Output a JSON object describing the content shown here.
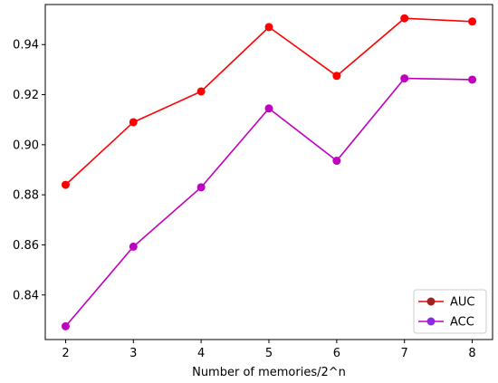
{
  "chart_data": {
    "type": "line",
    "xlabel": "Number of memories/2^n",
    "ylabel": "",
    "x": [
      2,
      3,
      4,
      5,
      6,
      7,
      8
    ],
    "xlim": [
      1.7,
      8.3
    ],
    "ylim": [
      0.8222,
      0.956
    ],
    "yticks": [
      0.84,
      0.86,
      0.88,
      0.9,
      0.92,
      0.94
    ],
    "ytick_labels": [
      "0.84",
      "0.86",
      "0.88",
      "0.90",
      "0.92",
      "0.94"
    ],
    "xtick_labels": [
      "2",
      "3",
      "4",
      "5",
      "6",
      "7",
      "8"
    ],
    "grid": false,
    "legend_position": "lower-right",
    "series": [
      {
        "name": "AUC",
        "color": "#ff0000",
        "legend_marker_color": "#a02020",
        "values": [
          0.884,
          0.909,
          0.9213,
          0.947,
          0.9275,
          0.9505,
          0.9492
        ]
      },
      {
        "name": "ACC",
        "color": "#bf00bf",
        "legend_marker_color": "#8a2be2",
        "values": [
          0.8275,
          0.8593,
          0.883,
          0.9145,
          0.8936,
          0.9265,
          0.926
        ]
      }
    ]
  }
}
